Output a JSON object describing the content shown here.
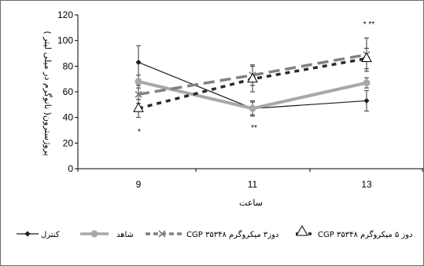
{
  "chart_data": {
    "type": "line",
    "xlabel": "ساعت",
    "ylabel": "پروژسترون( نانوگرم در میلی لیتر )",
    "categories": [
      "9",
      "11",
      "13"
    ],
    "ylim": [
      0,
      120
    ],
    "yticks": [
      "0",
      "20",
      "40",
      "60",
      "80",
      "100",
      "120"
    ],
    "grid": false,
    "legend_position": "bottom",
    "series": [
      {
        "name": "کنترل",
        "values": [
          83,
          47,
          53
        ],
        "errors": [
          13,
          6,
          8
        ],
        "color": "#1a1a1a",
        "style": "solid-thin",
        "marker": "diamond"
      },
      {
        "name": "شاهد",
        "values": [
          68,
          47,
          67
        ],
        "errors": [
          5,
          5,
          4
        ],
        "color": "#a8a8a8",
        "style": "solid-thick",
        "marker": "circle"
      },
      {
        "name": "CGP دوز۳ میکروگرم ۳۵۳۴۸",
        "values": [
          58,
          73,
          89
        ],
        "errors": [
          7,
          8,
          13
        ],
        "color": "#808080",
        "style": "dash-long",
        "marker": "x"
      },
      {
        "name": "CGP دوز ۵ میکروگرم ۳۵۳۴۸",
        "values": [
          47,
          70,
          86
        ],
        "errors": [
          7,
          10,
          8
        ],
        "color": "#2b2b2b",
        "style": "dash-short",
        "marker": "triangle"
      }
    ],
    "annotations": [
      {
        "category": "9",
        "text": "*"
      },
      {
        "category": "11",
        "text": "**"
      },
      {
        "category": "13",
        "text": "* **"
      }
    ]
  }
}
